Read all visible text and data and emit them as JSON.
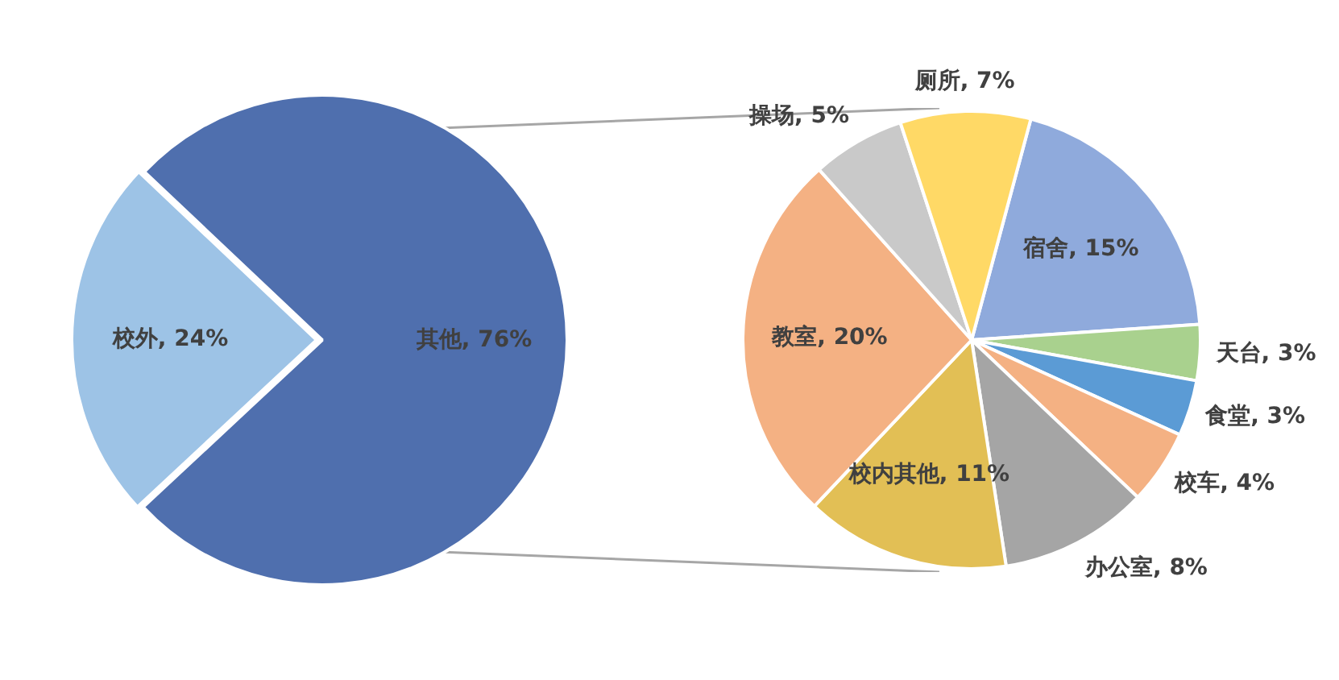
{
  "chart_data": [
    {
      "type": "pie",
      "categories": [
        "校外",
        "其他"
      ],
      "values": [
        24,
        76
      ],
      "colors": [
        "#9dc3e6",
        "#4f6fae"
      ],
      "value_labels": [
        "24%",
        "76%"
      ]
    },
    {
      "type": "pie",
      "categories": [
        "宿舍",
        "天台",
        "食堂",
        "校车",
        "办公室",
        "校内其他",
        "教室",
        "操场",
        "厕所"
      ],
      "values": [
        15,
        3,
        3,
        4,
        8,
        11,
        20,
        5,
        7
      ],
      "colors": [
        "#8faadc",
        "#a9d18e",
        "#5b9bd5",
        "#f4b183",
        "#a5a5a5",
        "#e2bf55",
        "#f4b183",
        "#c9c9c9",
        "#ffd966"
      ],
      "value_labels": [
        "15%",
        "3%",
        "3%",
        "4%",
        "8%",
        "11%",
        "20%",
        "5%",
        "7%"
      ]
    }
  ]
}
